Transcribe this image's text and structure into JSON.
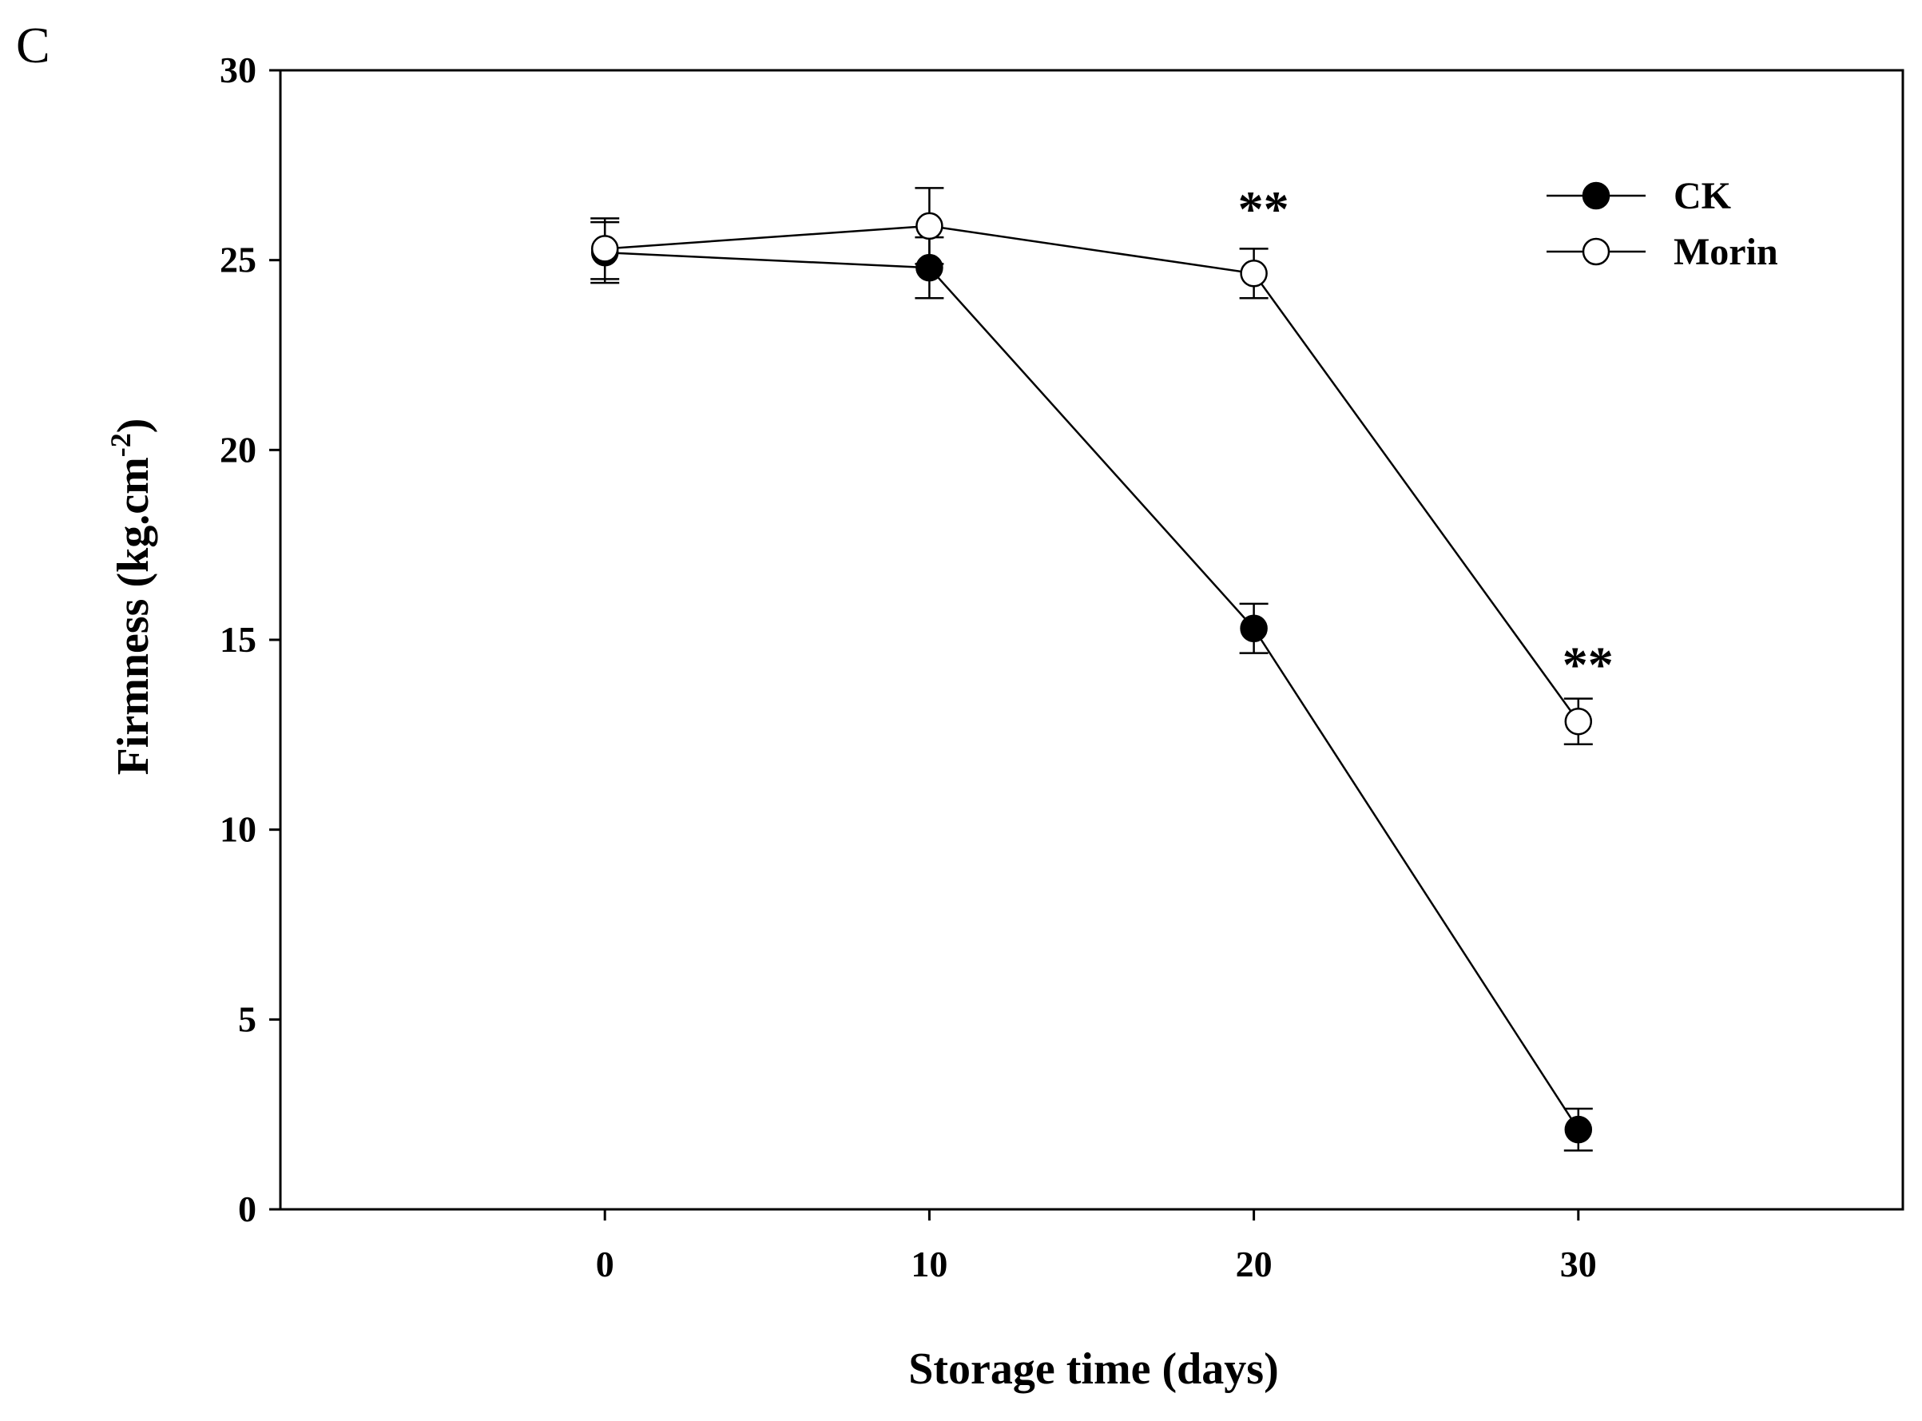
{
  "chart_data": {
    "type": "line",
    "panel_label": "C",
    "xlabel": "Storage time (days)",
    "ylabel": {
      "text": "Firmness (kg.cm",
      "superscript": "-2",
      "close": ")"
    },
    "x": [
      0,
      10,
      20,
      30
    ],
    "xlim": [
      -10,
      40
    ],
    "ylim": [
      0,
      30
    ],
    "xticks": [
      0,
      10,
      20,
      30
    ],
    "yticks": [
      0,
      5,
      10,
      15,
      20,
      25,
      30
    ],
    "grid": false,
    "legend_position": "top-right",
    "series": [
      {
        "name": "CK",
        "marker": "filled-circle",
        "color": "#000000",
        "values": [
          25.2,
          24.8,
          15.3,
          2.1
        ],
        "errors": [
          0.8,
          0.8,
          0.65,
          0.55
        ]
      },
      {
        "name": "Morin",
        "marker": "open-circle",
        "color": "#000000",
        "values": [
          25.3,
          25.9,
          24.65,
          12.85
        ],
        "errors": [
          0.8,
          1.0,
          0.65,
          0.6
        ]
      }
    ],
    "annotations": [
      {
        "text": "**",
        "x": 20,
        "y": 26.4
      },
      {
        "text": "**",
        "x": 30,
        "y": 14.4
      }
    ]
  }
}
